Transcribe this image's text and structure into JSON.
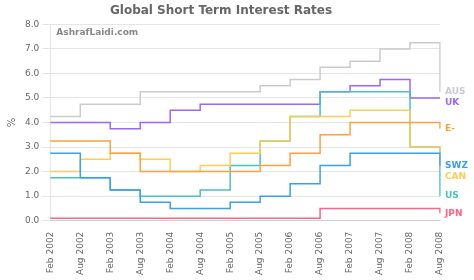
{
  "chart_data": {
    "type": "line",
    "title": "Global Short Term Interest Rates",
    "ylabel": "%",
    "annotations": [
      "AshrafLaidi.com"
    ],
    "line_style": "step",
    "grid": true,
    "categories": [
      "Feb 2002",
      "Aug 2002",
      "Feb 2003",
      "Aug 2003",
      "Feb 2004",
      "Aug 2004",
      "Feb 2005",
      "Aug 2005",
      "Feb 2006",
      "Aug 2006",
      "Feb 2007",
      "Aug 2007",
      "Feb 2008",
      "Aug 2008"
    ],
    "series": [
      {
        "name": "SWZ",
        "values": [
          2.75,
          1.75,
          1.25,
          0.75,
          0.5,
          0.5,
          0.75,
          1.0,
          1.5,
          2.25,
          2.75,
          2.75,
          2.75,
          2.25
        ]
      },
      {
        "name": "JPN",
        "values": [
          0.1,
          0.1,
          0.1,
          0.1,
          0.1,
          0.1,
          0.1,
          0.1,
          0.1,
          0.5,
          0.5,
          0.5,
          0.5,
          0.3
        ]
      },
      {
        "name": "E-",
        "values": [
          3.25,
          3.25,
          2.75,
          2.0,
          2.0,
          2.0,
          2.0,
          2.25,
          2.75,
          3.5,
          4.0,
          4.0,
          4.0,
          3.75
        ]
      },
      {
        "name": "CAN",
        "values": [
          2.0,
          2.5,
          2.75,
          2.5,
          2.0,
          2.25,
          2.75,
          3.25,
          4.25,
          4.25,
          4.5,
          4.5,
          3.0,
          2.25
        ]
      },
      {
        "name": "US",
        "values": [
          1.75,
          1.75,
          1.25,
          1.0,
          1.0,
          1.25,
          2.25,
          3.25,
          4.25,
          5.25,
          5.25,
          5.25,
          3.0,
          1.0
        ]
      },
      {
        "name": "UK",
        "values": [
          4.0,
          4.0,
          3.75,
          4.0,
          4.5,
          4.75,
          4.75,
          4.75,
          4.75,
          5.25,
          5.5,
          5.75,
          5.0,
          5.0
        ]
      },
      {
        "name": "AUS",
        "values": [
          4.25,
          4.75,
          4.75,
          5.25,
          5.25,
          5.25,
          5.25,
          5.5,
          5.75,
          6.25,
          6.5,
          7.0,
          7.25,
          5.25
        ]
      }
    ],
    "ylim": [
      0.0,
      8.0
    ],
    "yticks": [
      {
        "value": 0.0,
        "label": "0.0"
      },
      {
        "value": 1.0,
        "label": "1.0"
      },
      {
        "value": 2.0,
        "label": "2.0"
      },
      {
        "value": 3.0,
        "label": "3.0"
      },
      {
        "value": 4.0,
        "label": "4.0"
      },
      {
        "value": 5.0,
        "label": "5.0"
      },
      {
        "value": 6.0,
        "label": "6.0"
      },
      {
        "value": 7.0,
        "label": "7.0"
      },
      {
        "value": 8.0,
        "label": "8.0"
      }
    ]
  }
}
